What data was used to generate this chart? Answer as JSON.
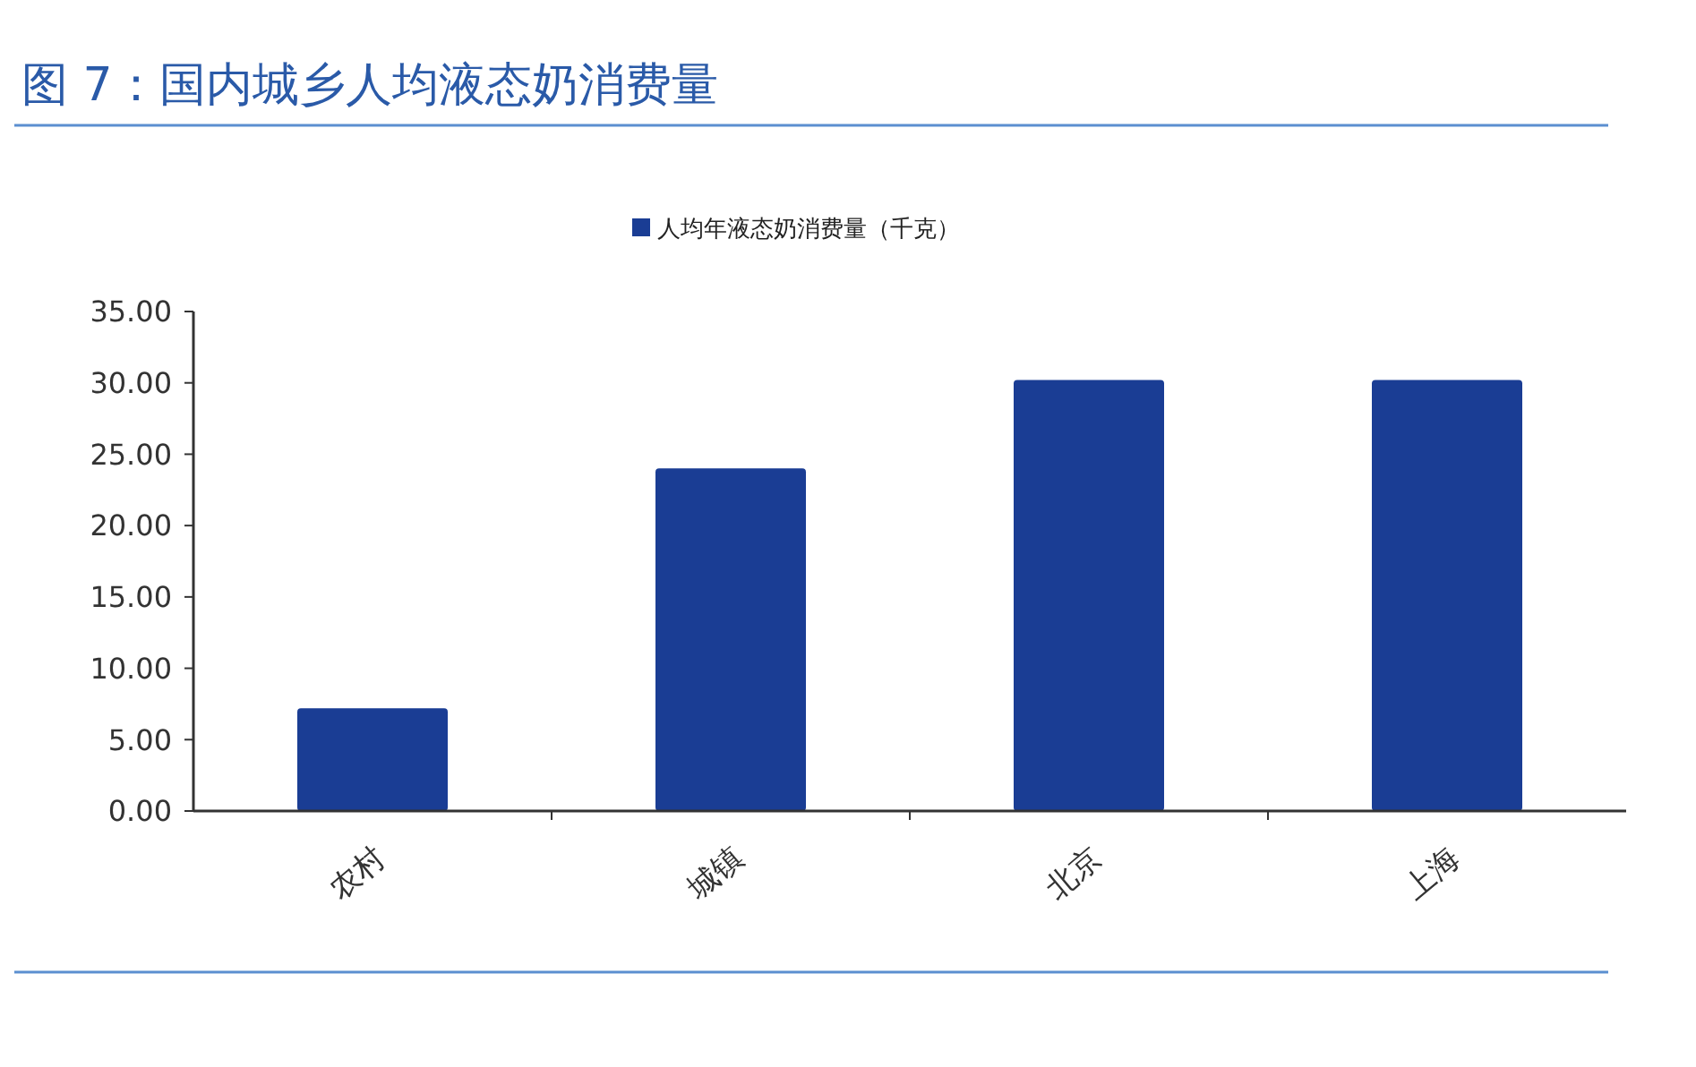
{
  "chart_data": {
    "type": "bar",
    "title": "图 7：国内城乡人均液态奶消费量",
    "categories": [
      "农村",
      "城镇",
      "北京",
      "上海"
    ],
    "series": [
      {
        "name": "人均年液态奶消费量（千克）",
        "color": "#1a3d94",
        "values": [
          7.2,
          24.0,
          30.2,
          30.2
        ]
      }
    ],
    "ylim": [
      0,
      35
    ],
    "yticks": [
      {
        "value": 0,
        "label": "0.00"
      },
      {
        "value": 5,
        "label": "5.00"
      },
      {
        "value": 10,
        "label": "10.00"
      },
      {
        "value": 15,
        "label": "15.00"
      },
      {
        "value": 20,
        "label": "20.00"
      },
      {
        "value": 25,
        "label": "25.00"
      },
      {
        "value": 30,
        "label": "30.00"
      },
      {
        "value": 35,
        "label": "35.00"
      }
    ],
    "grid": false,
    "legend": "top"
  }
}
